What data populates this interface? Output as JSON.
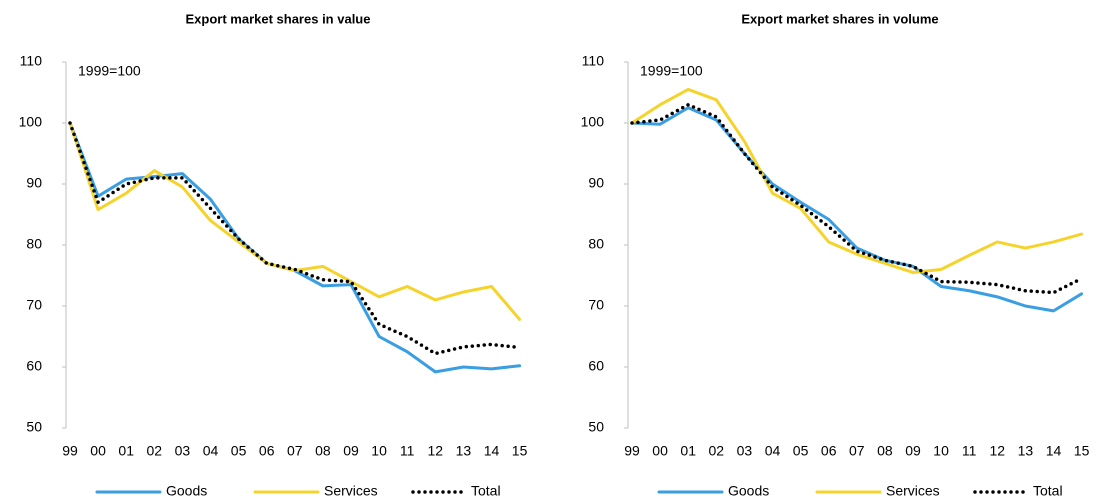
{
  "chart_data": [
    {
      "type": "line",
      "title": "Export market shares in value",
      "annotation": "1999=100",
      "categories": [
        "99",
        "00",
        "01",
        "02",
        "03",
        "04",
        "05",
        "06",
        "07",
        "08",
        "09",
        "10",
        "11",
        "12",
        "13",
        "14",
        "15"
      ],
      "ylim": [
        50,
        110
      ],
      "yticks": [
        50,
        60,
        70,
        80,
        90,
        100,
        110
      ],
      "grid": false,
      "legend": "bottom",
      "series": [
        {
          "name": "Goods",
          "color": "#3a9ee3",
          "style": "solid",
          "values": [
            100,
            88,
            90.8,
            91.2,
            91.7,
            87.5,
            81,
            77,
            75.8,
            73.3,
            73.5,
            65,
            62.5,
            59.2,
            60,
            59.7,
            60.2
          ]
        },
        {
          "name": "Services",
          "color": "#f5d32b",
          "style": "solid",
          "values": [
            100,
            85.8,
            88.5,
            92.2,
            89.5,
            84,
            80.5,
            77,
            75.8,
            76.5,
            74,
            71.5,
            73.2,
            71,
            72.3,
            73.2,
            67.8
          ]
        },
        {
          "name": "Total",
          "color": "#000000",
          "style": "dotted",
          "values": [
            100,
            87,
            90,
            91,
            91,
            86,
            81,
            77,
            76,
            74.3,
            74,
            67,
            65,
            62.2,
            63.3,
            63.7,
            63.2
          ]
        }
      ]
    },
    {
      "type": "line",
      "title": "Export market shares in volume",
      "annotation": "1999=100",
      "categories": [
        "99",
        "00",
        "01",
        "02",
        "03",
        "04",
        "05",
        "06",
        "07",
        "08",
        "09",
        "10",
        "11",
        "12",
        "13",
        "14",
        "15"
      ],
      "ylim": [
        50,
        110
      ],
      "yticks": [
        50,
        60,
        70,
        80,
        90,
        100,
        110
      ],
      "grid": false,
      "legend": "bottom",
      "series": [
        {
          "name": "Goods",
          "color": "#3a9ee3",
          "style": "solid",
          "values": [
            100,
            99.8,
            102.5,
            100.5,
            95,
            90,
            87,
            84.2,
            79.5,
            77.5,
            76.5,
            73.2,
            72.5,
            71.5,
            70,
            69.2,
            72
          ]
        },
        {
          "name": "Services",
          "color": "#f5d32b",
          "style": "solid",
          "values": [
            100,
            103,
            105.5,
            103.8,
            97,
            88.5,
            86,
            80.5,
            78.5,
            77,
            75.5,
            76,
            78.3,
            80.5,
            79.5,
            80.5,
            81.8
          ]
        },
        {
          "name": "Total",
          "color": "#000000",
          "style": "dotted",
          "values": [
            100,
            100.5,
            103,
            101,
            95,
            89.5,
            86.5,
            83,
            79,
            77.5,
            76.5,
            74,
            73.9,
            73.5,
            72.5,
            72.2,
            74.5
          ]
        }
      ]
    }
  ]
}
